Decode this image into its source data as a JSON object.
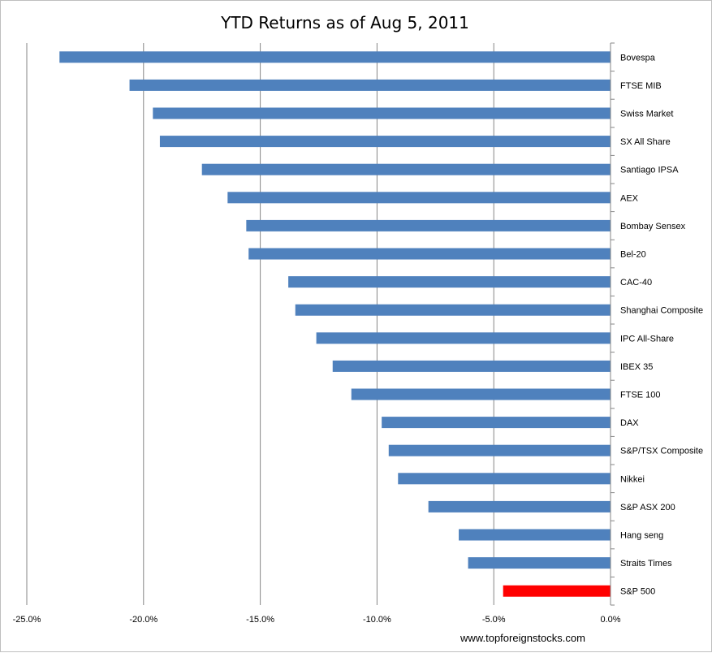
{
  "chart_data": {
    "type": "bar",
    "orientation": "horizontal",
    "title": "YTD Returns as of Aug 5, 2011",
    "xlabel": "",
    "ylabel": "",
    "xlim": [
      -25,
      0
    ],
    "x_ticks": [
      "-25.0%",
      "-20.0%",
      "-15.0%",
      "-10.0%",
      "-5.0%",
      "0.0%"
    ],
    "grid": "vertical",
    "categories": [
      "Bovespa",
      "FTSE MIB",
      "Swiss Market",
      "SX All Share",
      "Santiago IPSA",
      "AEX",
      "Bombay Sensex",
      "Bel-20",
      "CAC-40",
      "Shanghai Composite",
      "IPC All-Share",
      "IBEX 35",
      "FTSE 100",
      "DAX",
      "S&P/TSX Composite",
      "Nikkei",
      "S&P ASX 200",
      "Hang seng",
      "Straits Times",
      "S&P 500"
    ],
    "values": [
      -23.6,
      -20.6,
      -19.6,
      -19.3,
      -17.5,
      -16.4,
      -15.6,
      -15.5,
      -13.8,
      -13.5,
      -12.6,
      -11.9,
      -11.1,
      -9.8,
      -9.5,
      -9.1,
      -7.8,
      -6.5,
      -6.1,
      -4.6
    ],
    "colors": {
      "default": "#4f81bd",
      "highlight": "#ff0000"
    },
    "highlight_category": "S&P 500",
    "source": "www.topforeignstocks.com"
  }
}
